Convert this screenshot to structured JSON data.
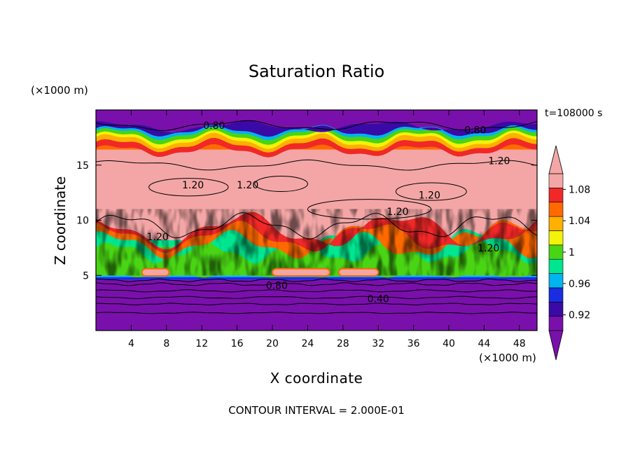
{
  "chart_data": {
    "type": "heatmap",
    "title": "Saturation Ratio",
    "xlabel": "X coordinate",
    "ylabel": "Z coordinate",
    "x_unit": "(×1000 m)",
    "z_unit": "(×1000 m)",
    "time_label": "t=108000 s",
    "footer": "CONTOUR INTERVAL = 2.000E-01",
    "xlim": [
      0,
      50
    ],
    "ylim": [
      0,
      20
    ],
    "x_ticks": [
      4,
      8,
      12,
      16,
      20,
      24,
      28,
      32,
      36,
      40,
      44,
      48
    ],
    "y_ticks": [
      5,
      10,
      15
    ],
    "colorbar": {
      "tick_labels": [
        "0.92",
        "0.96",
        "1",
        "1.04",
        "1.08"
      ],
      "tick_values": [
        0.92,
        0.96,
        1.0,
        1.04,
        1.08
      ],
      "levels": [
        0.9,
        0.92,
        0.94,
        0.96,
        0.98,
        1.0,
        1.02,
        1.04,
        1.06,
        1.08,
        1.1
      ],
      "colors": [
        "#7a10ab",
        "#3a0aa6",
        "#1a2ee0",
        "#00b4f0",
        "#00e690",
        "#49d414",
        "#f2f20a",
        "#ffb000",
        "#ff6a00",
        "#f02828",
        "#f4a6a6"
      ],
      "extend": "both"
    },
    "contour_labels": [
      {
        "text": "0.80",
        "x": 13.4,
        "z": 18.6
      },
      {
        "text": "0.80",
        "x": 43.0,
        "z": 18.2
      },
      {
        "text": "1.20",
        "x": 45.7,
        "z": 15.4
      },
      {
        "text": "1.20",
        "x": 11.0,
        "z": 13.2
      },
      {
        "text": "1.20",
        "x": 17.2,
        "z": 13.2
      },
      {
        "text": "1.20",
        "x": 37.8,
        "z": 12.3
      },
      {
        "text": "1.20",
        "x": 34.2,
        "z": 10.8
      },
      {
        "text": "1.20",
        "x": 7.0,
        "z": 8.5
      },
      {
        "text": "1.20",
        "x": 44.5,
        "z": 7.5
      },
      {
        "text": "0.80",
        "x": 20.5,
        "z": 4.1
      },
      {
        "text": "0.40",
        "x": 32.0,
        "z": 2.9
      }
    ]
  }
}
